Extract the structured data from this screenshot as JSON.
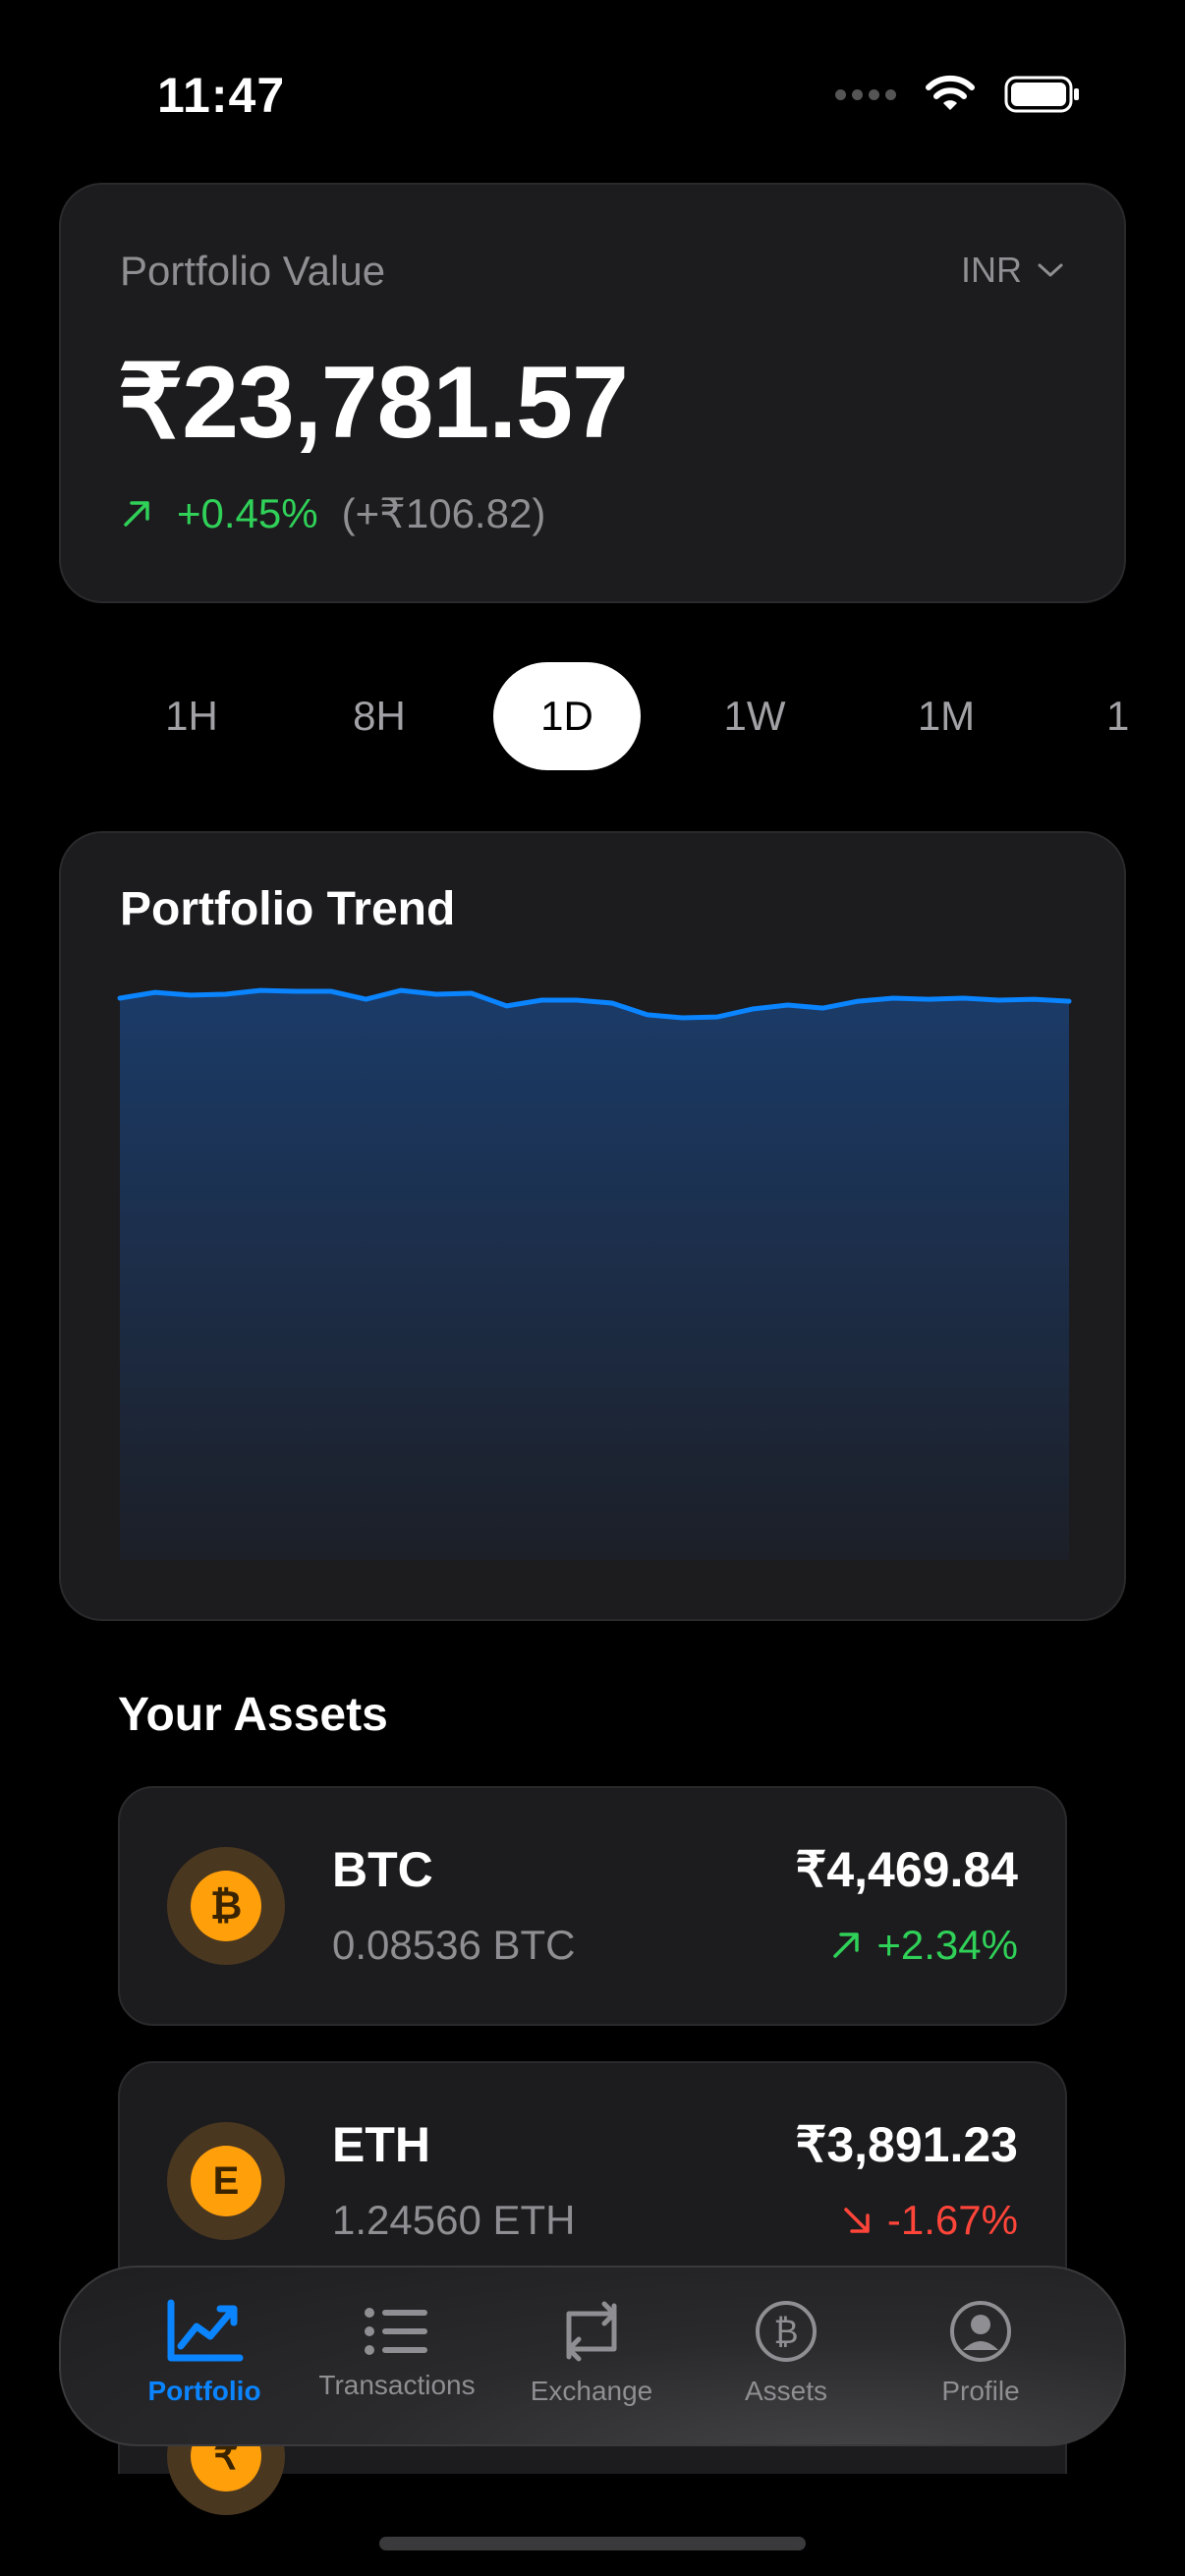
{
  "status_bar": {
    "time": "11:47"
  },
  "portfolio": {
    "label": "Portfolio Value",
    "currency": "INR",
    "value": "₹23,781.57",
    "change_percent": "+0.45%",
    "change_amount": "(+₹106.82)"
  },
  "time_ranges": {
    "items": [
      "1H",
      "8H",
      "1D",
      "1W",
      "1M",
      "1"
    ],
    "selected": "1D"
  },
  "trend": {
    "title": "Portfolio Trend",
    "line_color": "#0a84ff"
  },
  "chart_data": {
    "type": "area",
    "title": "Portfolio Trend",
    "values": [
      1.0,
      0.67,
      0.83,
      0.78,
      0.56,
      0.61,
      0.61,
      1.06,
      0.56,
      0.78,
      0.72,
      1.44,
      1.11,
      1.11,
      1.28,
      1.94,
      2.11,
      2.06,
      1.61,
      1.39,
      1.56,
      1.17,
      1.0,
      1.06,
      1.0,
      1.11,
      1.06,
      1.17
    ]
  },
  "assets": {
    "title": "Your Assets",
    "items": [
      {
        "symbol": "BTC",
        "coin_glyph": "₿",
        "quantity": "0.08536 BTC",
        "value": "₹4,469.84",
        "change": "+2.34%",
        "direction": "up"
      },
      {
        "symbol": "ETH",
        "coin_glyph": "E",
        "quantity": "1.24560 ETH",
        "value": "₹3,891.23",
        "change": "-1.67%",
        "direction": "down"
      }
    ]
  },
  "tabbar": {
    "items": [
      {
        "label": "Portfolio",
        "icon": "chart-line-icon",
        "active": true
      },
      {
        "label": "Transactions",
        "icon": "list-icon",
        "active": false
      },
      {
        "label": "Exchange",
        "icon": "exchange-arrows-icon",
        "active": false
      },
      {
        "label": "Assets",
        "icon": "bitcoin-circle-icon",
        "active": false
      },
      {
        "label": "Profile",
        "icon": "person-circle-icon",
        "active": false
      }
    ]
  },
  "colors": {
    "accent": "#0a84ff",
    "positive": "#30d158",
    "negative": "#ff453a",
    "coin": "#ff9f0a"
  }
}
